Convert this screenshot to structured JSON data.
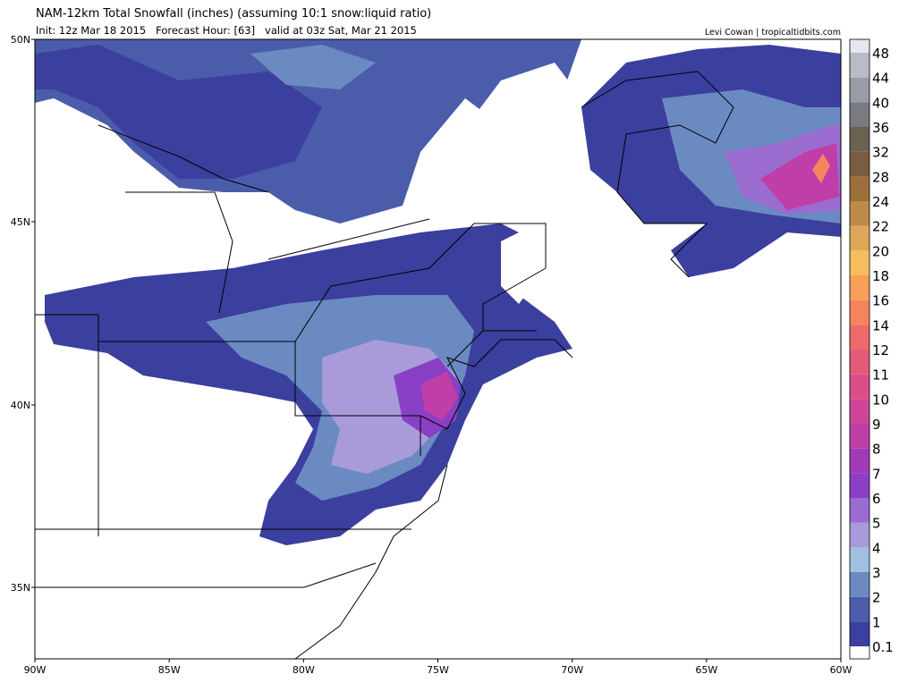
{
  "header": {
    "title": "NAM-12km Total Snowfall (inches) (assuming 10:1 snow:liquid ratio)",
    "subtitle": "Init: 12z Mar 18 2015   Forecast Hour: [63]   valid at 03z Sat, Mar 21 2015",
    "credit": "Levi Cowan | tropicaltidbits.com"
  },
  "map": {
    "lat_labels": [
      "50N",
      "45N",
      "40N",
      "35N"
    ],
    "lon_labels": [
      "90W",
      "85W",
      "80W",
      "75W",
      "70W",
      "65W",
      "60W"
    ]
  },
  "colorbar": {
    "labels": [
      0.1,
      1,
      2,
      3,
      4,
      5,
      6,
      7,
      8,
      9,
      10,
      11,
      12,
      14,
      16,
      18,
      20,
      22,
      24,
      28,
      32,
      36,
      40,
      44,
      48
    ],
    "colors": [
      "#ffffff",
      "#3b3f9e",
      "#4a5caa",
      "#6b8ac1",
      "#9fc0e0",
      "#a99bd9",
      "#9a6cd0",
      "#8a40c4",
      "#a23bb8",
      "#bf3ea8",
      "#cf4699",
      "#dc4d88",
      "#e45a78",
      "#ed6a6a",
      "#f5845e",
      "#f8a05a",
      "#f4bd60",
      "#dea858",
      "#be8a48",
      "#9c6e3a",
      "#7a5c40",
      "#6a6250",
      "#7a7a82",
      "#9a9ca8",
      "#b8bcc8",
      "#e4e7ee"
    ]
  }
}
